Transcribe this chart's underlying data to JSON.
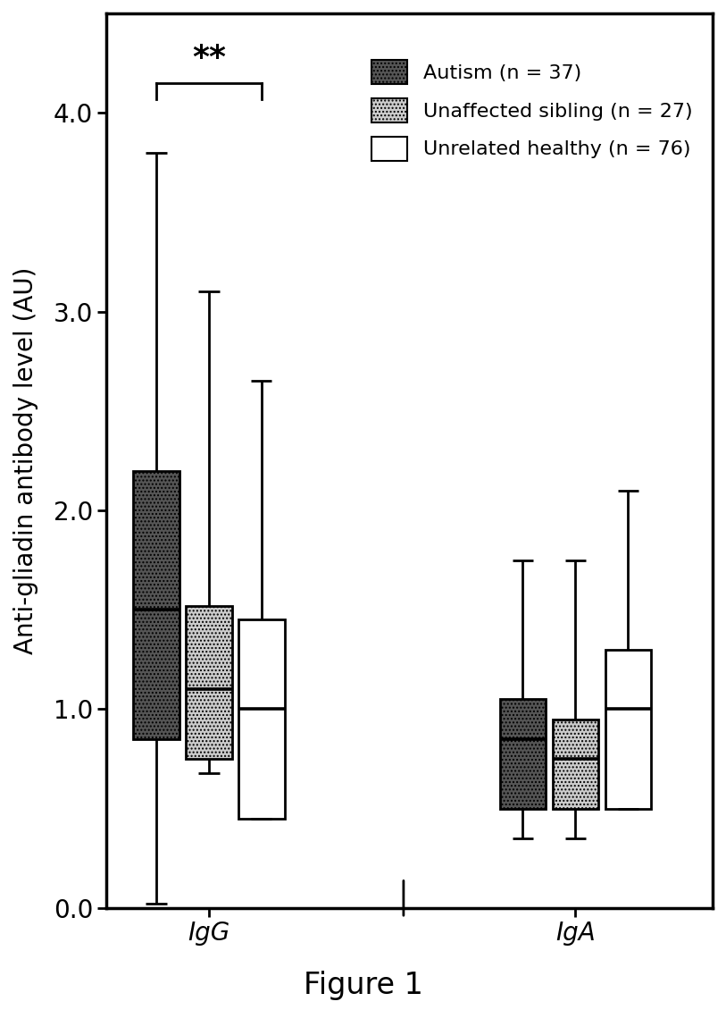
{
  "figure_title": "Figure 1",
  "ylabel": "Anti-gliadin antibody level (AU)",
  "groups": [
    "IgG",
    "IgA"
  ],
  "series": [
    {
      "name": "Autism (n = 37)",
      "color": "#555555",
      "hatch": "...."
    },
    {
      "name": "Unaffected sibling (n = 27)",
      "color": "#cccccc",
      "hatch": "...."
    },
    {
      "name": "Unrelated healthy (n = 76)",
      "color": "#ffffff",
      "hatch": ""
    }
  ],
  "boxes": {
    "IgG": [
      {
        "whislo": 0.02,
        "q1": 0.85,
        "med": 1.5,
        "q3": 2.2,
        "whishi": 3.8
      },
      {
        "whislo": 0.68,
        "q1": 0.75,
        "med": 1.1,
        "q3": 1.52,
        "whishi": 3.1
      },
      {
        "whislo": 0.45,
        "q1": 0.45,
        "med": 1.0,
        "q3": 1.45,
        "whishi": 2.65
      }
    ],
    "IgA": [
      {
        "whislo": 0.35,
        "q1": 0.5,
        "med": 0.85,
        "q3": 1.05,
        "whishi": 1.75
      },
      {
        "whislo": 0.35,
        "q1": 0.5,
        "med": 0.75,
        "q3": 0.95,
        "whishi": 1.75
      },
      {
        "whislo": 0.5,
        "q1": 0.5,
        "med": 1.0,
        "q3": 1.3,
        "whishi": 2.1
      }
    ]
  },
  "ylim": [
    0.0,
    4.5
  ],
  "yticks": [
    0.0,
    1.0,
    2.0,
    3.0,
    4.0
  ],
  "yticklabels": [
    "0.0",
    "1.0",
    "2.0",
    "3.0",
    "4.0"
  ],
  "box_width": 0.2,
  "group_centers": [
    1.0,
    2.6
  ],
  "offsets": [
    -0.23,
    0.0,
    0.23
  ],
  "bracket_y": 4.15,
  "bracket_drop": 0.08,
  "sig_label": "**",
  "divider_x": 1.85,
  "xlim": [
    0.55,
    3.2
  ],
  "figsize_inches": [
    8.13,
    11.3
  ],
  "dpi": 100
}
